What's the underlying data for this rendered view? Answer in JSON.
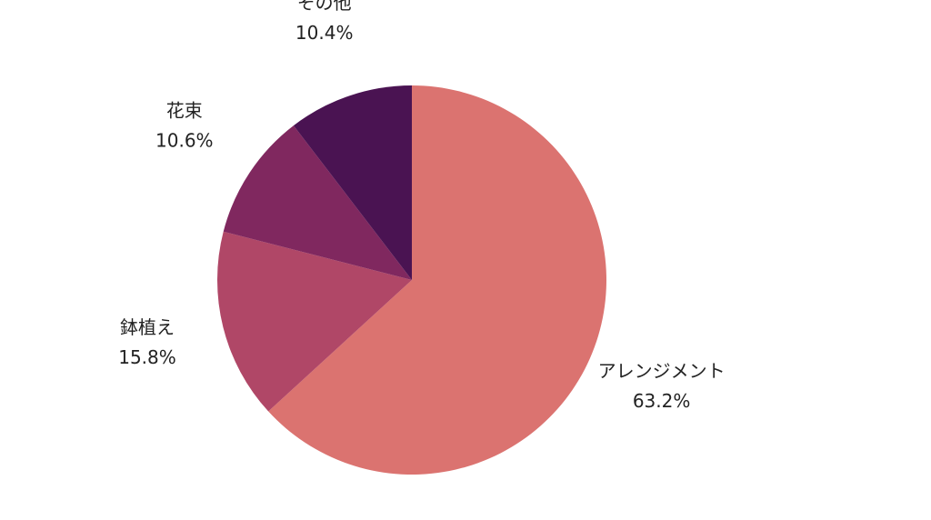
{
  "chart_data": {
    "type": "pie",
    "title": "",
    "categories": [
      "アレンジメント",
      "鉢植え",
      "花束",
      "その他"
    ],
    "values": [
      63.2,
      15.8,
      10.6,
      10.4
    ],
    "value_labels": [
      "63.2%",
      "15.8%",
      "10.6%",
      "10.4%"
    ],
    "colors": [
      "#db7370",
      "#b04767",
      "#80285f",
      "#4a1352"
    ],
    "start_angle": "12 o'clock",
    "direction": "clockwise",
    "legend": "none (direct labels)"
  }
}
